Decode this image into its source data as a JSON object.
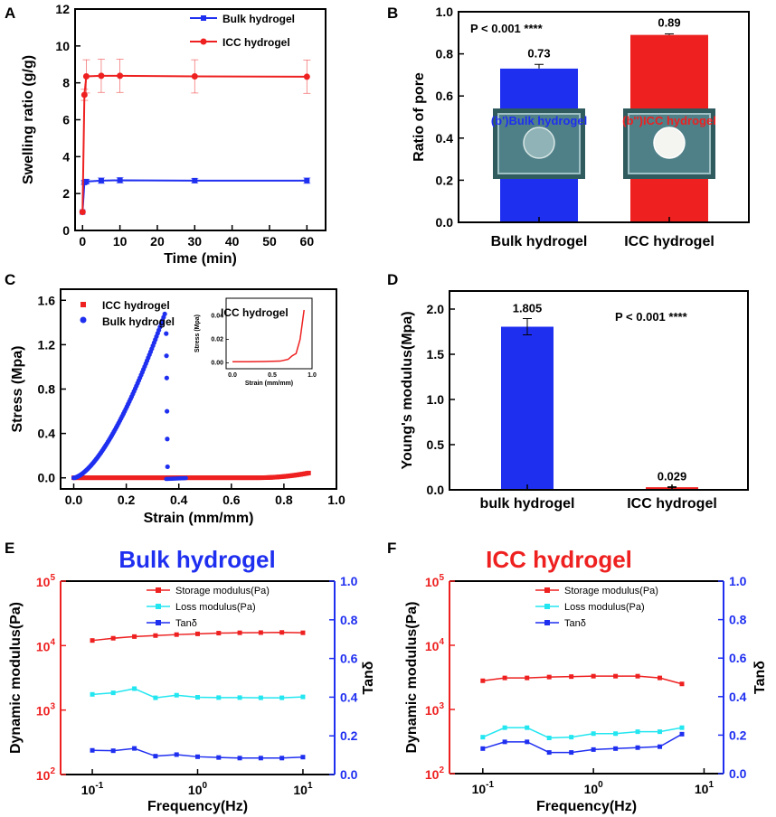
{
  "colors": {
    "blue": "#1f2ff0",
    "red": "#ee2020",
    "cyan": "#22e6f0",
    "axis": "#000000"
  },
  "chart_data": [
    {
      "id": "A",
      "type": "line",
      "panel_label": "A",
      "xlabel": "Time (min)",
      "ylabel": "Swelling ratio (g/g)",
      "xlim": [
        -2,
        65
      ],
      "ylim": [
        0,
        12
      ],
      "xticks": [
        "0",
        "10",
        "20",
        "30",
        "40",
        "50",
        "60"
      ],
      "yticks": [
        "0",
        "2",
        "4",
        "6",
        "8",
        "10",
        "12"
      ],
      "legend": [
        "Bulk hydrogel",
        "ICC hydrogel"
      ],
      "series": [
        {
          "name": "Bulk hydrogel",
          "x": [
            0,
            0.5,
            1,
            5,
            10,
            30,
            60
          ],
          "y": [
            1.0,
            2.6,
            2.65,
            2.7,
            2.72,
            2.7,
            2.7
          ],
          "err": [
            0,
            0.1,
            0.12,
            0.15,
            0.15,
            0.12,
            0.15
          ]
        },
        {
          "name": "ICC hydrogel",
          "x": [
            0,
            0.5,
            1,
            5,
            10,
            30,
            60
          ],
          "y": [
            1.0,
            7.35,
            8.35,
            8.38,
            8.38,
            8.35,
            8.33
          ],
          "err": [
            0,
            0.3,
            0.9,
            0.9,
            0.9,
            0.9,
            0.9
          ]
        }
      ]
    },
    {
      "id": "B",
      "type": "bar",
      "panel_label": "B",
      "ylabel": "Ratio of pore",
      "ylim": [
        0,
        1.0
      ],
      "yticks": [
        "0.0",
        "0.2",
        "0.4",
        "0.6",
        "0.8",
        "1.0"
      ],
      "categories": [
        "Bulk hydrogel",
        "ICC hydrogel"
      ],
      "values": [
        0.73,
        0.89
      ],
      "errors": [
        0.02,
        0.005
      ],
      "value_labels": [
        "0.73",
        "0.89"
      ],
      "annotation": "P < 0.001 ****",
      "photo_labels": [
        "(b')Bulk hydrogel",
        "(b'')ICC hydrogel"
      ]
    },
    {
      "id": "C",
      "type": "scatter",
      "panel_label": "C",
      "xlabel": "Strain (mm/mm)",
      "ylabel": "Stress (Mpa)",
      "xlim": [
        -0.05,
        1.0
      ],
      "ylim": [
        -0.1,
        1.7
      ],
      "xticks": [
        "0.0",
        "0.2",
        "0.4",
        "0.6",
        "0.8",
        "1.0"
      ],
      "yticks": [
        "0.0",
        "0.4",
        "0.8",
        "1.2",
        "1.6"
      ],
      "legend": [
        "ICC hydrogel",
        "Bulk hydrogel"
      ],
      "inset": {
        "title": "ICC hydrogel",
        "xlabel": "Strain (mm/mm)",
        "ylabel": "Stress (Mpa)",
        "xticks": [
          "0.0",
          "0.5",
          "1.0"
        ],
        "yticks": [
          "0.00",
          "0.02",
          "0.04"
        ],
        "x": [
          0,
          0.2,
          0.4,
          0.6,
          0.7,
          0.75,
          0.8,
          0.85,
          0.88,
          0.9
        ],
        "y": [
          0.001,
          0.001,
          0.0012,
          0.0015,
          0.003,
          0.006,
          0.008,
          0.02,
          0.035,
          0.045
        ]
      }
    },
    {
      "id": "D",
      "type": "bar",
      "panel_label": "D",
      "ylabel": "Young's modulus(Mpa)",
      "ylim": [
        0,
        2.2
      ],
      "yticks": [
        "0.0",
        "0.5",
        "1.0",
        "1.5",
        "2.0"
      ],
      "categories": [
        "bulk hydrogel",
        "ICC hydrogel"
      ],
      "values": [
        1.805,
        0.029
      ],
      "errors": [
        0.09,
        0.005
      ],
      "value_labels": [
        "1.805",
        "0.029"
      ],
      "annotation": "P < 0.001 ****"
    },
    {
      "id": "E",
      "type": "line",
      "panel_label": "E",
      "title": "Bulk hydrogel",
      "xlabel": "Frequency(Hz)",
      "ylabel_left": "Dynamic modulus(Pa)",
      "ylabel_right": "Tanδ",
      "xticks": [
        "10^-1",
        "10^0",
        "10^1"
      ],
      "yticks_left": [
        "10^2",
        "10^3",
        "10^4",
        "10^5"
      ],
      "yticks_right": [
        "0.0",
        "0.2",
        "0.4",
        "0.6",
        "0.8",
        "1.0"
      ],
      "x": [
        0.1,
        0.158,
        0.251,
        0.398,
        0.631,
        1.0,
        1.585,
        2.512,
        3.981,
        6.31,
        10
      ],
      "series": [
        {
          "name": "Storage modulus(Pa)",
          "axis": "left",
          "y": [
            12000,
            13000,
            13800,
            14300,
            14800,
            15200,
            15600,
            15800,
            15900,
            16000,
            15800
          ]
        },
        {
          "name": "Loss modulus(Pa)",
          "axis": "left",
          "y": [
            1750,
            1850,
            2150,
            1550,
            1700,
            1580,
            1560,
            1560,
            1550,
            1550,
            1600
          ]
        },
        {
          "name": "Tanδ",
          "axis": "right",
          "y": [
            0.125,
            0.123,
            0.135,
            0.095,
            0.103,
            0.092,
            0.088,
            0.085,
            0.085,
            0.085,
            0.09
          ]
        }
      ]
    },
    {
      "id": "F",
      "type": "line",
      "panel_label": "F",
      "title": "ICC hydrogel",
      "xlabel": "Frequency(Hz)",
      "ylabel_left": "Dynamic modulus(Pa)",
      "ylabel_right": "Tanδ",
      "xticks": [
        "10^-1",
        "10^0",
        "10^1"
      ],
      "yticks_left": [
        "10^2",
        "10^3",
        "10^4",
        "10^5"
      ],
      "yticks_right": [
        "0.0",
        "0.2",
        "0.4",
        "0.6",
        "0.8",
        "1.0"
      ],
      "x": [
        0.1,
        0.158,
        0.251,
        0.398,
        0.631,
        1.0,
        1.585,
        2.512,
        3.981,
        6.31
      ],
      "series": [
        {
          "name": "Storage modulus(Pa)",
          "axis": "left",
          "y": [
            2800,
            3100,
            3100,
            3200,
            3250,
            3300,
            3300,
            3300,
            3100,
            2500
          ]
        },
        {
          "name": "Loss modulus(Pa)",
          "axis": "left",
          "y": [
            370,
            520,
            520,
            360,
            370,
            420,
            420,
            450,
            450,
            520
          ]
        },
        {
          "name": "Tanδ",
          "axis": "right",
          "y": [
            0.13,
            0.165,
            0.165,
            0.11,
            0.11,
            0.125,
            0.13,
            0.135,
            0.14,
            0.205
          ]
        }
      ]
    }
  ]
}
